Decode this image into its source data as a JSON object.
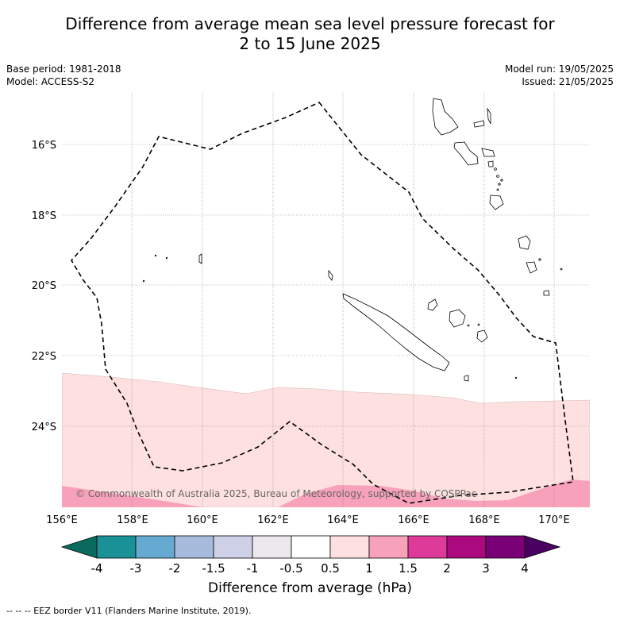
{
  "title_line1": "Difference from average mean sea level pressure forecast for",
  "title_line2": "2 to 15 June 2025",
  "base_period": "Base period: 1981-2018",
  "model": "Model: ACCESS-S2",
  "model_run": "Model run: 19/05/2025",
  "issued": "Issued: 21/05/2025",
  "copyright": "© Commonwealth of Australia 2025, Bureau of Meteorology, supported by COSPPac",
  "footer_note": "--  --  -- EEZ border V11 (Flanders Marine Institute, 2019).",
  "colorbar": {
    "title": "Difference from average (hPa)",
    "tick_labels": [
      "-4",
      "-3",
      "-2",
      "-1.5",
      "-1",
      "-0.5",
      "0.5",
      "1",
      "1.5",
      "2",
      "3",
      "4"
    ],
    "colors": [
      "#0b6a5e",
      "#1a9097",
      "#66aad2",
      "#a7bcdc",
      "#cdd0e6",
      "#ebe9ee",
      "#ffffff",
      "#fde0df",
      "#f8a1ba",
      "#de3a9a",
      "#ab0a7e",
      "#7a0078",
      "#490060"
    ]
  },
  "map": {
    "lon_labels": [
      "156°E",
      "158°E",
      "160°E",
      "162°E",
      "164°E",
      "166°E",
      "168°E",
      "170°E"
    ],
    "lat_labels": [
      "16°S",
      "18°S",
      "20°S",
      "22°S",
      "24°S"
    ],
    "lon_values": [
      156,
      158,
      160,
      162,
      164,
      166,
      168,
      170
    ],
    "lat_values": [
      -16,
      -18,
      -20,
      -22,
      -24
    ],
    "lon_range": [
      156,
      171
    ],
    "lat_range": [
      -26.3,
      -14.5
    ],
    "grid": true,
    "anomaly_fill_hpa": [
      {
        "range": "0.5 to 1",
        "color": "#fde0df",
        "region": "southern band from about 22.6°S to 26.3°S"
      },
      {
        "range": "1 to 1.5",
        "color": "#f8a1ba",
        "region": "southern edge near 25.5°S to 26.3°S"
      }
    ]
  }
}
